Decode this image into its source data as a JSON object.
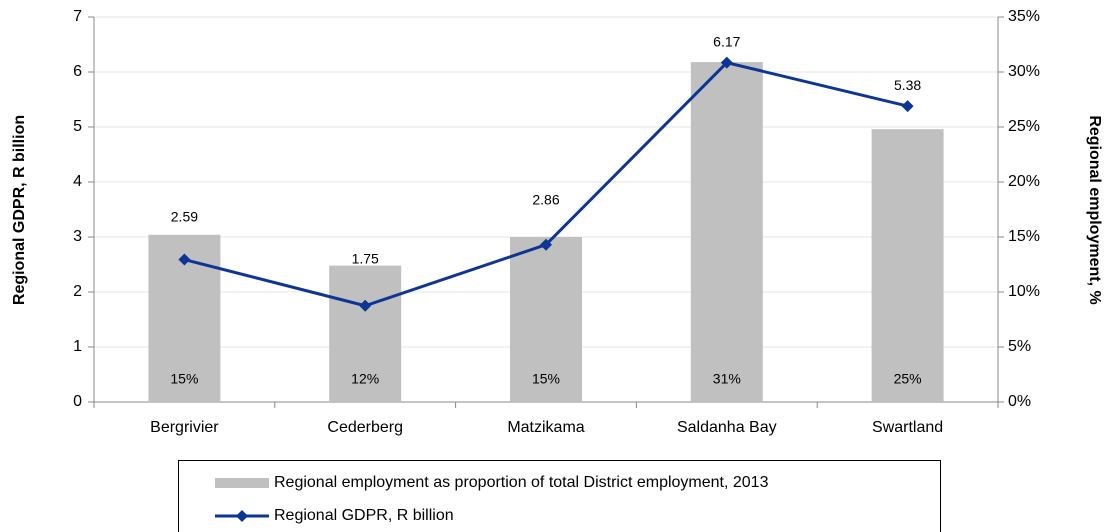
{
  "chart_data": {
    "type": "combo",
    "categories": [
      "Bergrivier",
      "Cederberg",
      "Matzikama",
      "Saldanha Bay",
      "Swartland"
    ],
    "series": [
      {
        "name": "Regional employment as proportion of total District employment, 2013",
        "type": "bar",
        "color": "#c0c0c0",
        "axis": "y2",
        "values": [
          15.2,
          12.4,
          15.0,
          30.9,
          24.8
        ],
        "value_labels": [
          "15%",
          "12%",
          "15%",
          "31%",
          "25%"
        ]
      },
      {
        "name": "Regional GDPR, R billion",
        "type": "line",
        "color": "#0d3594",
        "axis": "y",
        "values": [
          2.59,
          1.75,
          2.86,
          6.17,
          5.38
        ]
      }
    ],
    "ylabel": "Regional GDPR, R billion",
    "y2label": "Regional employment, %",
    "ylim": [
      0,
      7
    ],
    "yticks": [
      0,
      1,
      2,
      3,
      4,
      5,
      6,
      7
    ],
    "y2lim": [
      0,
      35
    ],
    "y2ticks": [
      {
        "value": 0,
        "label": "0%"
      },
      {
        "value": 5,
        "label": "5%"
      },
      {
        "value": 10,
        "label": "10%"
      },
      {
        "value": 15,
        "label": "15%"
      },
      {
        "value": 20,
        "label": "20%"
      },
      {
        "value": 25,
        "label": "25%"
      },
      {
        "value": 30,
        "label": "30%"
      },
      {
        "value": 35,
        "label": "35%"
      }
    ],
    "grid": true
  }
}
